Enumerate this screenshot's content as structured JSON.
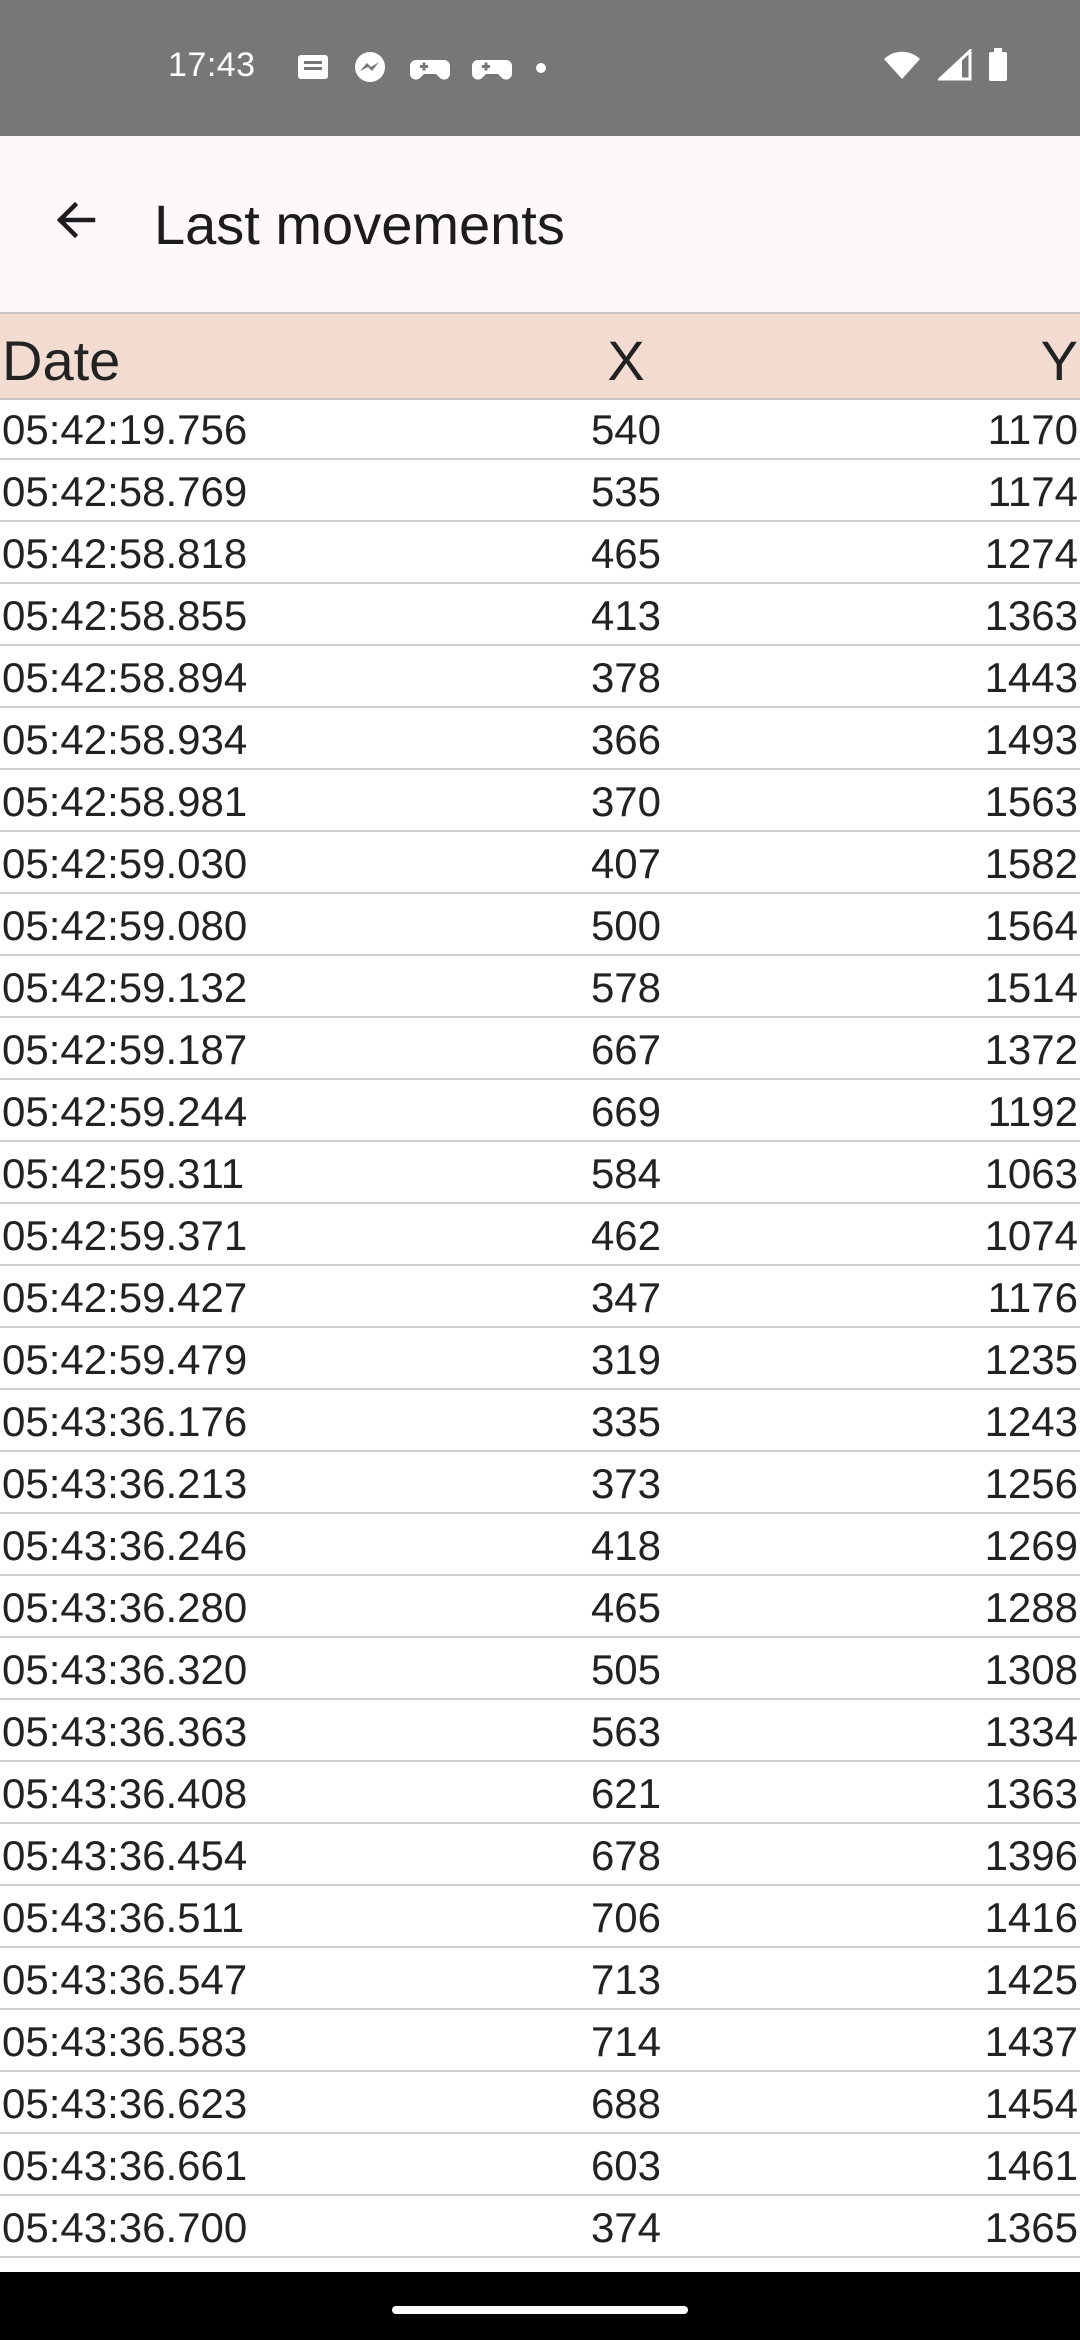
{
  "status_bar": {
    "time": "17:43",
    "left_icons": [
      "message-icon",
      "messenger-icon",
      "game-controller-icon",
      "game-controller-icon",
      "dot-icon"
    ],
    "right_icons": [
      "wifi-icon",
      "signal-icon",
      "battery-icon"
    ]
  },
  "app_bar": {
    "title": "Last movements",
    "back_icon": "arrow-back-icon"
  },
  "table": {
    "headers": {
      "date": "Date",
      "x": "X",
      "y": "Y"
    },
    "rows": [
      {
        "date": "05:42:19.756",
        "x": "540",
        "y": "1170"
      },
      {
        "date": "05:42:58.769",
        "x": "535",
        "y": "1174"
      },
      {
        "date": "05:42:58.818",
        "x": "465",
        "y": "1274"
      },
      {
        "date": "05:42:58.855",
        "x": "413",
        "y": "1363"
      },
      {
        "date": "05:42:58.894",
        "x": "378",
        "y": "1443"
      },
      {
        "date": "05:42:58.934",
        "x": "366",
        "y": "1493"
      },
      {
        "date": "05:42:58.981",
        "x": "370",
        "y": "1563"
      },
      {
        "date": "05:42:59.030",
        "x": "407",
        "y": "1582"
      },
      {
        "date": "05:42:59.080",
        "x": "500",
        "y": "1564"
      },
      {
        "date": "05:42:59.132",
        "x": "578",
        "y": "1514"
      },
      {
        "date": "05:42:59.187",
        "x": "667",
        "y": "1372"
      },
      {
        "date": "05:42:59.244",
        "x": "669",
        "y": "1192"
      },
      {
        "date": "05:42:59.311",
        "x": "584",
        "y": "1063"
      },
      {
        "date": "05:42:59.371",
        "x": "462",
        "y": "1074"
      },
      {
        "date": "05:42:59.427",
        "x": "347",
        "y": "1176"
      },
      {
        "date": "05:42:59.479",
        "x": "319",
        "y": "1235"
      },
      {
        "date": "05:43:36.176",
        "x": "335",
        "y": "1243"
      },
      {
        "date": "05:43:36.213",
        "x": "373",
        "y": "1256"
      },
      {
        "date": "05:43:36.246",
        "x": "418",
        "y": "1269"
      },
      {
        "date": "05:43:36.280",
        "x": "465",
        "y": "1288"
      },
      {
        "date": "05:43:36.320",
        "x": "505",
        "y": "1308"
      },
      {
        "date": "05:43:36.363",
        "x": "563",
        "y": "1334"
      },
      {
        "date": "05:43:36.408",
        "x": "621",
        "y": "1363"
      },
      {
        "date": "05:43:36.454",
        "x": "678",
        "y": "1396"
      },
      {
        "date": "05:43:36.511",
        "x": "706",
        "y": "1416"
      },
      {
        "date": "05:43:36.547",
        "x": "713",
        "y": "1425"
      },
      {
        "date": "05:43:36.583",
        "x": "714",
        "y": "1437"
      },
      {
        "date": "05:43:36.623",
        "x": "688",
        "y": "1454"
      },
      {
        "date": "05:43:36.661",
        "x": "603",
        "y": "1461"
      },
      {
        "date": "05:43:36.700",
        "x": "374",
        "y": "1365"
      }
    ]
  },
  "colors": {
    "status_bar": "#777777",
    "app_bar": "#fdf8fb",
    "header_bg": "#f2dcd1",
    "nav_bar": "#000000"
  }
}
